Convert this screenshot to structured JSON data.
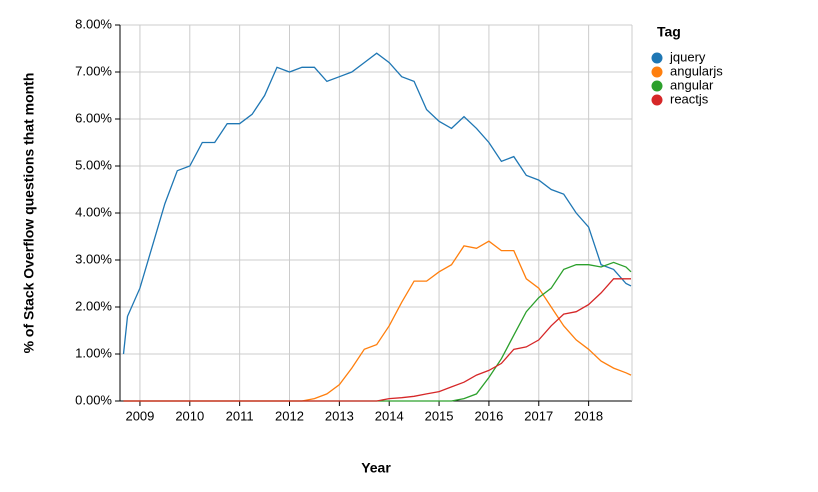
{
  "chart_data": {
    "type": "line",
    "x_label": "Year",
    "y_label": "% of Stack Overflow questions that month",
    "legend_title": "Tag",
    "legend": "right",
    "grid": true,
    "x": [
      2008.67,
      2008.75,
      2009,
      2009.25,
      2009.5,
      2009.75,
      2010,
      2010.25,
      2010.5,
      2010.75,
      2011,
      2011.25,
      2011.5,
      2011.75,
      2012,
      2012.25,
      2012.5,
      2012.75,
      2013,
      2013.25,
      2013.5,
      2013.75,
      2014,
      2014.25,
      2014.5,
      2014.75,
      2015,
      2015.25,
      2015.5,
      2015.75,
      2016,
      2016.25,
      2016.5,
      2016.75,
      2017,
      2017.25,
      2017.5,
      2017.75,
      2018,
      2018.25,
      2018.5,
      2018.75,
      2018.85
    ],
    "xlim": [
      2008.6,
      2018.87
    ],
    "xticks": [
      2009,
      2010,
      2011,
      2012,
      2013,
      2014,
      2015,
      2016,
      2017,
      2018
    ],
    "ylim": [
      0,
      8
    ],
    "yticks": [
      {
        "value": 0,
        "label": "0.00%"
      },
      {
        "value": 1,
        "label": "1.00%"
      },
      {
        "value": 2,
        "label": "2.00%"
      },
      {
        "value": 3,
        "label": "3.00%"
      },
      {
        "value": 4,
        "label": "4.00%"
      },
      {
        "value": 5,
        "label": "5.00%"
      },
      {
        "value": 6,
        "label": "6.00%"
      },
      {
        "value": 7,
        "label": "7.00%"
      },
      {
        "value": 8,
        "label": "8.00%"
      }
    ],
    "series": [
      {
        "name": "jquery",
        "color": "#1f77b4",
        "values": [
          1.0,
          1.8,
          2.4,
          3.3,
          4.2,
          4.9,
          5.0,
          5.5,
          5.5,
          5.9,
          5.9,
          6.1,
          6.5,
          7.1,
          7.0,
          7.1,
          7.1,
          6.8,
          6.9,
          7.0,
          7.2,
          7.4,
          7.2,
          6.9,
          6.8,
          6.2,
          5.95,
          5.8,
          6.05,
          5.8,
          5.5,
          5.1,
          5.2,
          4.8,
          4.7,
          4.5,
          4.4,
          4.0,
          3.7,
          2.9,
          2.8,
          2.5,
          2.45
        ]
      },
      {
        "name": "angularjs",
        "color": "#ff7f0e",
        "values": [
          0,
          0,
          0,
          0,
          0,
          0,
          0,
          0,
          0,
          0,
          0,
          0,
          0,
          0,
          0,
          0,
          0.05,
          0.15,
          0.35,
          0.7,
          1.1,
          1.2,
          1.6,
          2.1,
          2.55,
          2.55,
          2.75,
          2.9,
          3.3,
          3.25,
          3.4,
          3.2,
          3.2,
          2.6,
          2.4,
          2.0,
          1.6,
          1.3,
          1.1,
          0.85,
          0.7,
          0.6,
          0.55
        ]
      },
      {
        "name": "angular",
        "color": "#2ca02c",
        "values": [
          0,
          0,
          0,
          0,
          0,
          0,
          0,
          0,
          0,
          0,
          0,
          0,
          0,
          0,
          0,
          0,
          0,
          0,
          0,
          0,
          0,
          0,
          0,
          0,
          0,
          0,
          0,
          0,
          0.05,
          0.15,
          0.5,
          0.9,
          1.4,
          1.9,
          2.2,
          2.4,
          2.8,
          2.9,
          2.9,
          2.85,
          2.95,
          2.85,
          2.75
        ]
      },
      {
        "name": "reactjs",
        "color": "#d62728",
        "values": [
          0,
          0,
          0,
          0,
          0,
          0,
          0,
          0,
          0,
          0,
          0,
          0,
          0,
          0,
          0,
          0,
          0,
          0,
          0,
          0,
          0,
          0,
          0.05,
          0.07,
          0.1,
          0.15,
          0.2,
          0.3,
          0.4,
          0.55,
          0.65,
          0.8,
          1.1,
          1.15,
          1.3,
          1.6,
          1.85,
          1.9,
          2.05,
          2.3,
          2.6,
          2.6,
          2.6
        ]
      }
    ]
  }
}
